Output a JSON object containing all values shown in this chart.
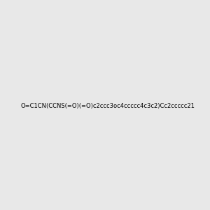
{
  "smiles": "O=C1CN(CCNS(=O)(=O)c2ccc3oc4ccccc4c3c2)Cc2ccccc21",
  "background_color": "#e8e8e8",
  "image_size": 300,
  "atom_colors": {
    "O": "#ff0000",
    "N": "#0000ff",
    "S": "#cccc00",
    "H": "#6699aa",
    "C": "#000000"
  }
}
